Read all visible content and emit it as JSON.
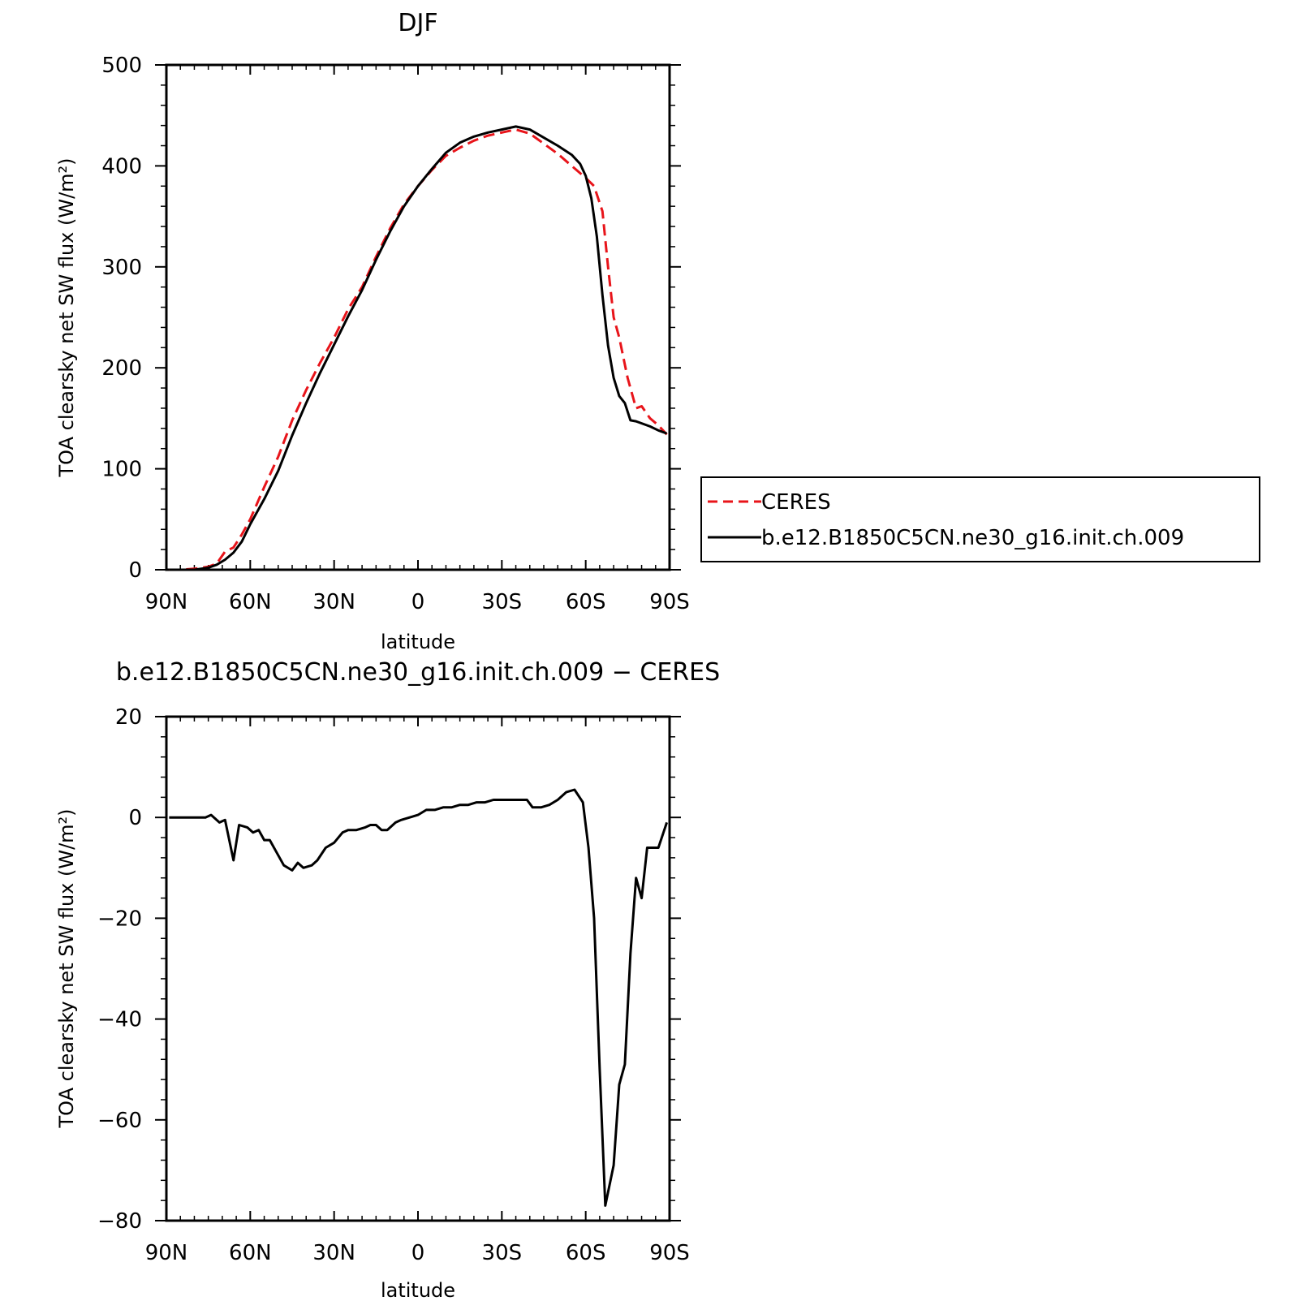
{
  "chart_data": [
    {
      "type": "line",
      "title": "DJF",
      "xlabel": "latitude",
      "ylabel": "TOA clearsky net SW flux (W/m²)",
      "xlim": [
        -90,
        90
      ],
      "ylim": [
        0,
        500
      ],
      "x_ticks": [
        -90,
        -60,
        -30,
        0,
        30,
        60,
        90
      ],
      "x_tick_labels": [
        "90N",
        "60N",
        "30N",
        "0",
        "30S",
        "60S",
        "90S"
      ],
      "y_ticks": [
        0,
        100,
        200,
        300,
        400,
        500
      ],
      "y_tick_labels": [
        "0",
        "100",
        "200",
        "300",
        "400",
        "500"
      ],
      "grid": false,
      "legend": "right, outside",
      "series": [
        {
          "name": "CERES",
          "color": "#e8141a",
          "dash": "dashed",
          "x": [
            -89,
            -85,
            -80,
            -75,
            -72,
            -69,
            -66,
            -63,
            -60,
            -55,
            -50,
            -45,
            -40,
            -35,
            -30,
            -25,
            -20,
            -15,
            -10,
            -5,
            0,
            5,
            10,
            15,
            20,
            25,
            30,
            35,
            40,
            45,
            50,
            55,
            60,
            63,
            66,
            68,
            70,
            72,
            75,
            78,
            80,
            83,
            86,
            89
          ],
          "y": [
            0,
            0,
            1,
            3,
            6,
            18,
            22,
            35,
            50,
            82,
            112,
            148,
            178,
            205,
            230,
            258,
            280,
            310,
            338,
            362,
            380,
            396,
            410,
            418,
            425,
            430,
            433,
            436,
            432,
            422,
            412,
            400,
            388,
            380,
            355,
            300,
            250,
            230,
            190,
            160,
            162,
            150,
            143,
            134
          ]
        },
        {
          "name": "b.e12.B1850C5CN.ne30_g16.init.ch.009",
          "color": "#000000",
          "dash": "solid",
          "x": [
            -89,
            -85,
            -80,
            -75,
            -72,
            -69,
            -66,
            -63,
            -60,
            -55,
            -50,
            -45,
            -40,
            -35,
            -30,
            -25,
            -20,
            -15,
            -10,
            -5,
            0,
            5,
            10,
            15,
            20,
            25,
            30,
            35,
            40,
            45,
            50,
            55,
            58,
            60,
            62,
            64,
            66,
            68,
            70,
            72,
            74,
            76,
            78,
            80,
            83,
            86,
            89
          ],
          "y": [
            0,
            0,
            0,
            2,
            5,
            10,
            17,
            28,
            45,
            70,
            98,
            133,
            165,
            195,
            223,
            251,
            277,
            307,
            335,
            360,
            380,
            397,
            413,
            423,
            429,
            433,
            436,
            439,
            436,
            428,
            420,
            411,
            402,
            390,
            368,
            330,
            272,
            222,
            190,
            172,
            165,
            148,
            147,
            145,
            142,
            138,
            135
          ]
        }
      ]
    },
    {
      "type": "line",
      "title": "b.e12.B1850C5CN.ne30_g16.init.ch.009 − CERES",
      "xlabel": "latitude",
      "ylabel": "TOA clearsky net SW flux (W/m²)",
      "xlim": [
        -90,
        90
      ],
      "ylim": [
        -80,
        20
      ],
      "x_ticks": [
        -90,
        -60,
        -30,
        0,
        30,
        60,
        90
      ],
      "x_tick_labels": [
        "90N",
        "60N",
        "30N",
        "0",
        "30S",
        "60S",
        "90S"
      ],
      "y_ticks": [
        -80,
        -60,
        -40,
        -20,
        0,
        20
      ],
      "y_tick_labels": [
        "−80",
        "−60",
        "−40",
        "−20",
        "0",
        "20"
      ],
      "grid": false,
      "series": [
        {
          "color": "#000000",
          "dash": "solid",
          "x": [
            -89,
            -85,
            -80,
            -76,
            -74,
            -71,
            -69,
            -66,
            -64,
            -61,
            -59,
            -57,
            -55,
            -53,
            -50,
            -48,
            -45,
            -43,
            -41,
            -38,
            -36,
            -33,
            -30,
            -27,
            -25,
            -22,
            -19,
            -17,
            -15,
            -13,
            -11,
            -8,
            -6,
            -3,
            0,
            3,
            6,
            9,
            12,
            15,
            18,
            21,
            24,
            27,
            30,
            33,
            36,
            39,
            41,
            44,
            47,
            50,
            53,
            56,
            59,
            61,
            63,
            65,
            67,
            70,
            72,
            74,
            76,
            78,
            80,
            82,
            84,
            86,
            89
          ],
          "y": [
            0,
            0,
            0,
            0,
            0.5,
            -1,
            -0.5,
            -8.5,
            -1.5,
            -2,
            -3,
            -2.5,
            -4.5,
            -4.5,
            -7.5,
            -9.5,
            -10.5,
            -9,
            -10,
            -9.5,
            -8.5,
            -6,
            -5,
            -3,
            -2.5,
            -2.5,
            -2,
            -1.5,
            -1.5,
            -2.5,
            -2.5,
            -1,
            -0.5,
            0,
            0.5,
            1.5,
            1.5,
            2,
            2,
            2.5,
            2.5,
            3,
            3,
            3.5,
            3.5,
            3.5,
            3.5,
            3.5,
            2,
            2,
            2.5,
            3.5,
            5,
            5.5,
            3,
            -6,
            -20,
            -50,
            -77,
            -69,
            -53,
            -49,
            -27,
            -12,
            -16,
            -6,
            -6,
            -6,
            -1
          ]
        }
      ]
    }
  ]
}
